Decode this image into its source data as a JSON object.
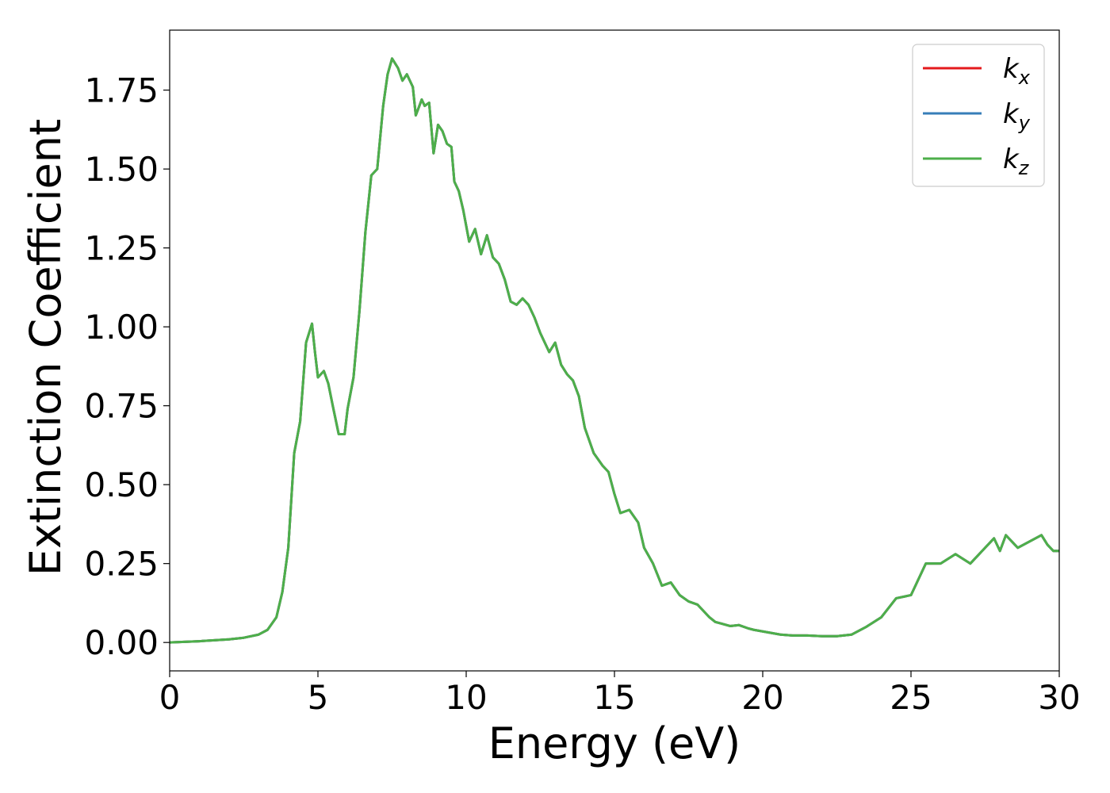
{
  "chart_data": {
    "type": "line",
    "title": "",
    "xlabel": "Energy (eV)",
    "ylabel": "Extinction Coefficient",
    "xlim": [
      0,
      30
    ],
    "ylim": [
      -0.09,
      1.94
    ],
    "xticks": [
      0,
      5,
      10,
      15,
      20,
      25,
      30
    ],
    "xtick_labels": [
      "0",
      "5",
      "10",
      "15",
      "20",
      "25",
      "30"
    ],
    "yticks": [
      0.0,
      0.25,
      0.5,
      0.75,
      1.0,
      1.25,
      1.5,
      1.75
    ],
    "ytick_labels": [
      "0.00",
      "0.25",
      "0.50",
      "0.75",
      "1.00",
      "1.25",
      "1.50",
      "1.75"
    ],
    "grid": false,
    "legend_position": "top-right",
    "series": [
      {
        "name": "k_x",
        "legend_main": "k",
        "legend_sub": "x",
        "color": "#e41a1c",
        "x": [
          0,
          1,
          2,
          2.5,
          3,
          3.3,
          3.6,
          3.8,
          4.0,
          4.2,
          4.4,
          4.6,
          4.8,
          4.9,
          5.0,
          5.1,
          5.2,
          5.35,
          5.5,
          5.7,
          5.9,
          6.0,
          6.2,
          6.4,
          6.6,
          6.8,
          7.0,
          7.2,
          7.35,
          7.5,
          7.7,
          7.85,
          8.0,
          8.2,
          8.3,
          8.5,
          8.6,
          8.75,
          8.9,
          9.05,
          9.2,
          9.35,
          9.5,
          9.6,
          9.75,
          9.9,
          10.1,
          10.3,
          10.5,
          10.7,
          10.9,
          11.1,
          11.3,
          11.5,
          11.7,
          11.9,
          12.1,
          12.3,
          12.5,
          12.8,
          13.0,
          13.2,
          13.4,
          13.6,
          13.8,
          14.0,
          14.3,
          14.6,
          14.8,
          15.0,
          15.2,
          15.5,
          15.8,
          16.0,
          16.3,
          16.6,
          16.9,
          17.2,
          17.5,
          17.8,
          18.0,
          18.2,
          18.4,
          18.6,
          18.9,
          19.2,
          19.5,
          19.7,
          20.0,
          20.3,
          20.6,
          21.0,
          21.5,
          22.0,
          22.5,
          23.0,
          23.5,
          24.0,
          24.5,
          25.0,
          25.5,
          26.0,
          26.5,
          27.0,
          27.5,
          27.8,
          28.0,
          28.2,
          28.4,
          28.6,
          28.8,
          29.0,
          29.2,
          29.4,
          29.6,
          29.8,
          30.0
        ],
        "y": [
          0.0,
          0.004,
          0.01,
          0.015,
          0.025,
          0.04,
          0.08,
          0.16,
          0.3,
          0.6,
          0.7,
          0.95,
          1.01,
          0.92,
          0.84,
          0.85,
          0.86,
          0.82,
          0.75,
          0.66,
          0.66,
          0.74,
          0.84,
          1.05,
          1.3,
          1.48,
          1.5,
          1.7,
          1.8,
          1.85,
          1.82,
          1.78,
          1.8,
          1.76,
          1.67,
          1.72,
          1.7,
          1.71,
          1.55,
          1.64,
          1.62,
          1.58,
          1.57,
          1.46,
          1.43,
          1.37,
          1.27,
          1.31,
          1.23,
          1.29,
          1.22,
          1.2,
          1.15,
          1.08,
          1.07,
          1.09,
          1.07,
          1.03,
          0.98,
          0.92,
          0.95,
          0.88,
          0.85,
          0.83,
          0.78,
          0.68,
          0.6,
          0.56,
          0.54,
          0.47,
          0.41,
          0.42,
          0.38,
          0.3,
          0.25,
          0.18,
          0.19,
          0.15,
          0.13,
          0.12,
          0.1,
          0.08,
          0.065,
          0.06,
          0.052,
          0.055,
          0.045,
          0.04,
          0.035,
          0.03,
          0.025,
          0.022,
          0.022,
          0.02,
          0.02,
          0.025,
          0.05,
          0.08,
          0.14,
          0.15,
          0.25,
          0.25,
          0.28,
          0.25,
          0.3,
          0.33,
          0.29,
          0.34,
          0.32,
          0.3,
          0.31,
          0.32,
          0.33,
          0.34,
          0.31,
          0.29,
          0.29
        ]
      },
      {
        "name": "k_y",
        "legend_main": "k",
        "legend_sub": "y",
        "color": "#377eb8",
        "x": [],
        "y": []
      },
      {
        "name": "k_z",
        "legend_main": "k",
        "legend_sub": "z",
        "color": "#4daf4a",
        "x": [],
        "y": []
      }
    ]
  }
}
